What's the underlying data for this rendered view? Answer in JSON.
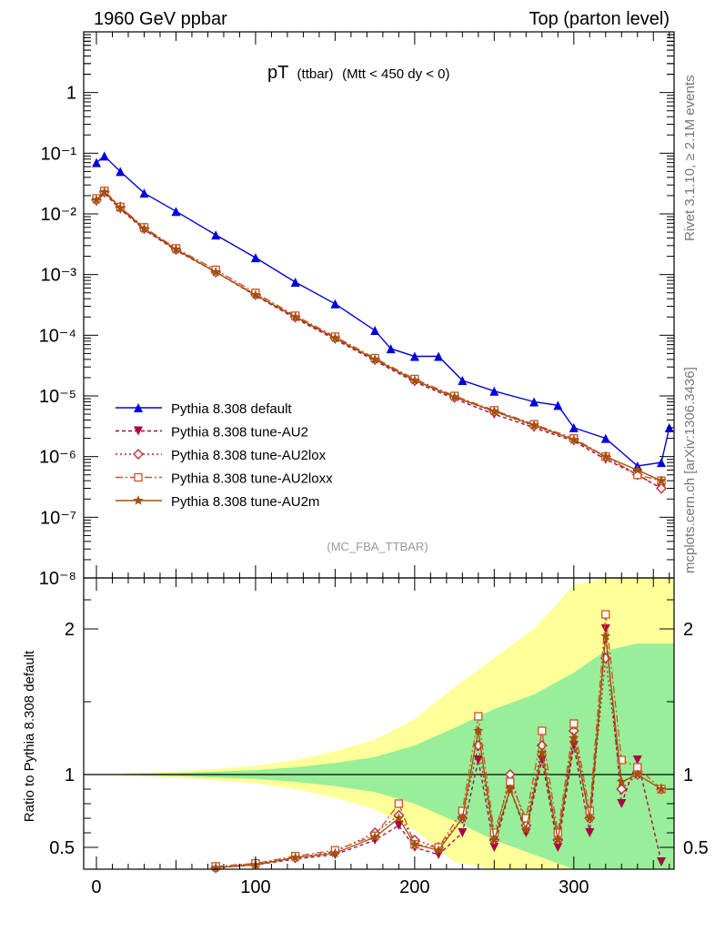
{
  "header": {
    "left": "1960 GeV ppbar",
    "right": "Top (parton level)"
  },
  "side_labels": {
    "rivet": "Rivet 3.1.10, ≥ 2.1M events",
    "mcplots": "mcplots.cern.ch [arXiv:1306.3436]"
  },
  "chart_data": [
    {
      "type": "line",
      "title_main": "pT",
      "title_sub": "(ttbar)",
      "title_rest": "(Mtt < 450 dy < 0)",
      "analysis": "(MC_FBA_TTBAR)",
      "yscale": "log",
      "xlim": [
        -8,
        363
      ],
      "ylim": [
        1e-08,
        10
      ],
      "grid": false,
      "legend_position": "bottom-left",
      "ytick_labels": [
        "10⁻⁸",
        "10⁻⁷",
        "10⁻⁶",
        "10⁻⁵",
        "10⁻⁴",
        "10⁻³",
        "10⁻²",
        "10⁻¹",
        "1"
      ],
      "ytick_values": [
        1e-08,
        1e-07,
        1e-06,
        1e-05,
        0.0001,
        0.001,
        0.01,
        0.1,
        1
      ],
      "series": [
        {
          "name": "Pythia 8.308 default",
          "color": "#0000dd",
          "marker": "triangle-up",
          "dash": "none",
          "x": [
            0,
            5,
            15,
            30,
            50,
            75,
            100,
            125,
            150,
            175,
            185,
            200,
            215,
            230,
            250,
            275,
            290,
            300,
            320,
            340,
            355,
            360
          ],
          "y": [
            0.07,
            0.09,
            0.05,
            0.022,
            0.011,
            0.0045,
            0.0019,
            0.00075,
            0.00033,
            0.00012,
            6e-05,
            4.5e-05,
            4.5e-05,
            1.8e-05,
            1.2e-05,
            8e-06,
            7e-06,
            3e-06,
            2e-06,
            7e-07,
            8e-07,
            3e-06
          ]
        },
        {
          "name": "Pythia 8.308 tune-AU2",
          "color": "#aa0044",
          "marker": "triangle-down",
          "dash": "4,3",
          "x": [
            0,
            5,
            15,
            30,
            50,
            75,
            100,
            125,
            150,
            175,
            200,
            225,
            250,
            275,
            300,
            320,
            340,
            355
          ],
          "y": [
            0.016,
            0.022,
            0.012,
            0.0055,
            0.0025,
            0.0011,
            0.00045,
            0.00019,
            8.5e-05,
            3.8e-05,
            1.7e-05,
            9e-06,
            5e-06,
            3e-06,
            1.8e-06,
            9e-07,
            5e-07,
            3e-07
          ]
        },
        {
          "name": "Pythia 8.308 tune-AU2lox",
          "color": "#bb2233",
          "marker": "diamond",
          "dash": "2,3",
          "x": [
            0,
            5,
            15,
            30,
            50,
            75,
            100,
            125,
            150,
            175,
            200,
            225,
            250,
            275,
            300,
            320,
            340,
            355
          ],
          "y": [
            0.017,
            0.023,
            0.013,
            0.0058,
            0.0026,
            0.0011,
            0.00047,
            0.0002,
            9e-05,
            4e-05,
            1.8e-05,
            9.5e-06,
            5.5e-06,
            3.2e-06,
            1.9e-06,
            1e-06,
            5e-07,
            3e-07
          ]
        },
        {
          "name": "Pythia 8.308 tune-AU2loxx",
          "color": "#cc5522",
          "marker": "square",
          "dash": "8,3,2,3",
          "x": [
            0,
            5,
            15,
            30,
            50,
            75,
            100,
            125,
            150,
            175,
            200,
            225,
            250,
            275,
            300,
            320,
            340,
            355
          ],
          "y": [
            0.018,
            0.024,
            0.013,
            0.006,
            0.0027,
            0.0012,
            0.0005,
            0.00021,
            9.5e-05,
            4.2e-05,
            1.9e-05,
            1e-05,
            5.8e-06,
            3.4e-06,
            2e-06,
            1e-06,
            5e-07,
            4e-07
          ]
        },
        {
          "name": "Pythia 8.308 tune-AU2m",
          "color": "#a0520a",
          "marker": "star",
          "dash": "none",
          "x": [
            0,
            5,
            15,
            30,
            50,
            75,
            100,
            125,
            150,
            175,
            200,
            225,
            250,
            275,
            300,
            320,
            340,
            355
          ],
          "y": [
            0.017,
            0.023,
            0.0125,
            0.0057,
            0.0026,
            0.0011,
            0.00046,
            0.0002,
            9e-05,
            4e-05,
            1.8e-05,
            9.6e-06,
            5.6e-06,
            3.3e-06,
            1.9e-06,
            1e-06,
            6e-07,
            4e-07
          ]
        }
      ]
    },
    {
      "type": "line",
      "ylabel": "Ratio to Pythia 8.308 default",
      "xlim": [
        -8,
        363
      ],
      "ylim": [
        0.35,
        2.35
      ],
      "xtick_labels": [
        "0",
        "100",
        "200",
        "300"
      ],
      "xtick_values": [
        0,
        100,
        200,
        300
      ],
      "ytick_labels": [
        "0.5",
        "1",
        "2"
      ],
      "ytick_values": [
        0.5,
        1,
        2
      ],
      "bands": {
        "x": [
          0,
          50,
          100,
          125,
          150,
          175,
          200,
          225,
          250,
          275,
          300,
          320,
          340,
          363
        ],
        "green_half_width": [
          0.0,
          0.01,
          0.03,
          0.05,
          0.08,
          0.12,
          0.2,
          0.32,
          0.45,
          0.55,
          0.7,
          0.85,
          0.9,
          0.9
        ],
        "yellow_half_width": [
          0.0,
          0.02,
          0.06,
          0.1,
          0.16,
          0.24,
          0.38,
          0.6,
          0.8,
          1.0,
          1.3,
          1.6,
          1.8,
          1.8
        ],
        "green_color": "#99ee99",
        "yellow_color": "#ffff99"
      },
      "series": [
        {
          "name": "tune-AU2",
          "x": [
            75,
            100,
            125,
            150,
            175,
            190,
            200,
            215,
            230,
            240,
            250,
            260,
            270,
            280,
            290,
            300,
            310,
            320,
            330,
            340,
            355
          ],
          "y": [
            0.36,
            0.38,
            0.42,
            0.45,
            0.55,
            0.65,
            0.5,
            0.45,
            0.6,
            1.1,
            0.5,
            0.9,
            0.6,
            1.1,
            0.5,
            1.2,
            0.6,
            2.0,
            0.8,
            1.1,
            0.4
          ]
        },
        {
          "name": "tune-AU2lox",
          "x": [
            75,
            100,
            125,
            150,
            175,
            190,
            200,
            215,
            230,
            240,
            250,
            260,
            270,
            280,
            290,
            300,
            310,
            320,
            330,
            340,
            355
          ],
          "y": [
            0.36,
            0.39,
            0.43,
            0.47,
            0.6,
            0.72,
            0.55,
            0.5,
            0.7,
            1.2,
            0.55,
            1.0,
            0.65,
            1.2,
            0.55,
            1.3,
            0.7,
            1.8,
            0.9,
            1.0,
            0.9
          ]
        },
        {
          "name": "tune-AU2loxx",
          "x": [
            75,
            100,
            125,
            150,
            175,
            190,
            200,
            215,
            230,
            240,
            250,
            260,
            270,
            280,
            290,
            300,
            310,
            320,
            330,
            340,
            355
          ],
          "y": [
            0.37,
            0.39,
            0.44,
            0.48,
            0.58,
            0.8,
            0.52,
            0.5,
            0.75,
            1.4,
            0.6,
            0.95,
            0.7,
            1.3,
            0.6,
            1.35,
            0.75,
            2.1,
            1.1,
            1.05,
            0.9
          ]
        },
        {
          "name": "tune-AU2m",
          "x": [
            75,
            100,
            125,
            150,
            175,
            190,
            200,
            215,
            230,
            240,
            250,
            260,
            270,
            280,
            290,
            300,
            310,
            320,
            330,
            340,
            355
          ],
          "y": [
            0.36,
            0.38,
            0.43,
            0.46,
            0.57,
            0.7,
            0.52,
            0.48,
            0.7,
            1.3,
            0.55,
            0.9,
            0.62,
            1.15,
            0.55,
            1.25,
            0.7,
            1.95,
            0.95,
            1.0,
            0.9
          ]
        }
      ]
    }
  ]
}
